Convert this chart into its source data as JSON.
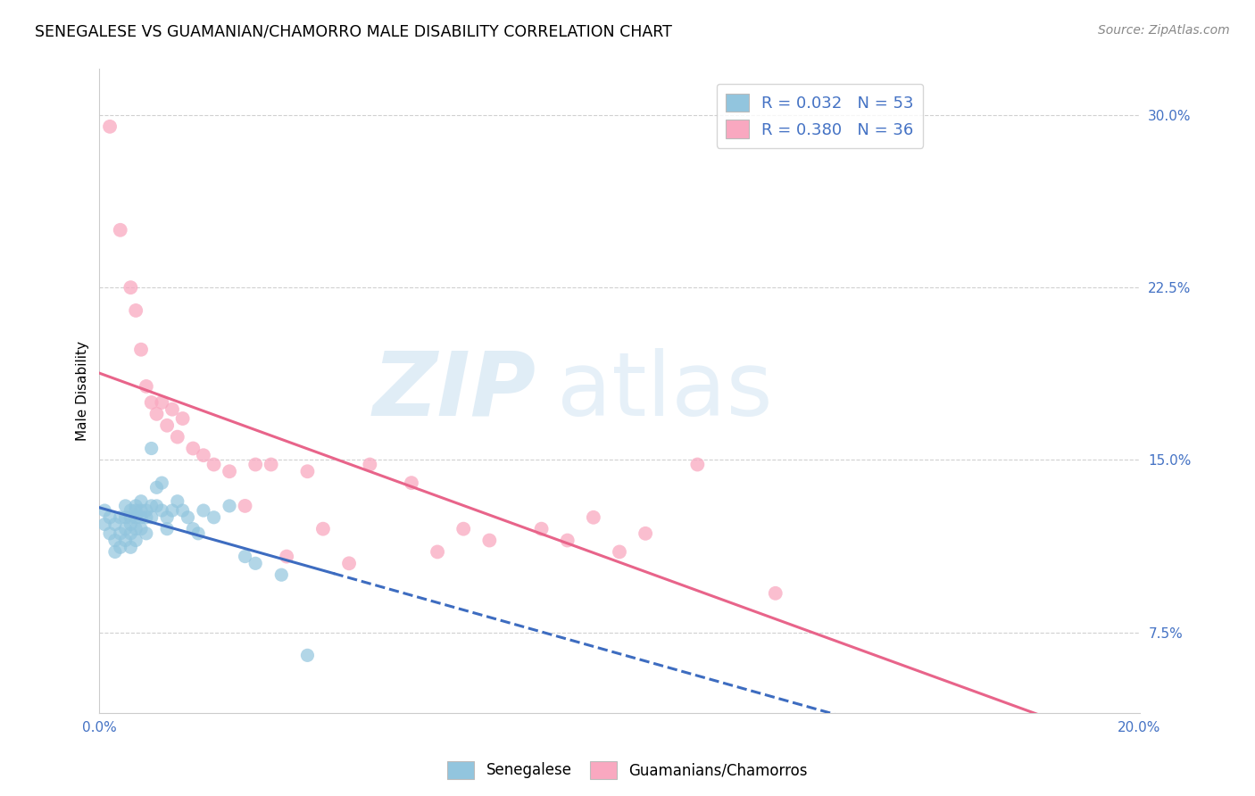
{
  "title": "SENEGALESE VS GUAMANIAN/CHAMORRO MALE DISABILITY CORRELATION CHART",
  "source": "Source: ZipAtlas.com",
  "ylabel": "Male Disability",
  "xlim": [
    0.0,
    0.2
  ],
  "ylim": [
    0.04,
    0.32
  ],
  "xtick_positions": [
    0.0,
    0.04,
    0.08,
    0.12,
    0.16,
    0.2
  ],
  "xtick_labels": [
    "0.0%",
    "",
    "",
    "",
    "",
    "20.0%"
  ],
  "yticks_right": [
    0.075,
    0.15,
    0.225,
    0.3
  ],
  "ytick_labels_right": [
    "7.5%",
    "15.0%",
    "22.5%",
    "30.0%"
  ],
  "color_blue": "#92c5de",
  "color_pink": "#f9a8c0",
  "color_line_blue": "#3d6cc0",
  "color_line_pink": "#e8648a",
  "color_text_blue": "#4472c4",
  "color_grid": "#d0d0d0",
  "watermark_zip": "ZIP",
  "watermark_atlas": "atlas",
  "label1": "Senegalese",
  "label2": "Guamanians/Chamorros",
  "senegalese_x": [
    0.001,
    0.001,
    0.002,
    0.002,
    0.003,
    0.003,
    0.003,
    0.004,
    0.004,
    0.004,
    0.005,
    0.005,
    0.005,
    0.005,
    0.006,
    0.006,
    0.006,
    0.006,
    0.006,
    0.007,
    0.007,
    0.007,
    0.007,
    0.007,
    0.008,
    0.008,
    0.008,
    0.008,
    0.009,
    0.009,
    0.009,
    0.01,
    0.01,
    0.01,
    0.011,
    0.011,
    0.012,
    0.012,
    0.013,
    0.013,
    0.014,
    0.015,
    0.016,
    0.017,
    0.018,
    0.019,
    0.02,
    0.022,
    0.025,
    0.028,
    0.03,
    0.035,
    0.04
  ],
  "senegalese_y": [
    0.128,
    0.122,
    0.125,
    0.118,
    0.122,
    0.115,
    0.11,
    0.125,
    0.118,
    0.112,
    0.13,
    0.125,
    0.12,
    0.115,
    0.128,
    0.125,
    0.122,
    0.118,
    0.112,
    0.13,
    0.128,
    0.125,
    0.12,
    0.115,
    0.132,
    0.128,
    0.125,
    0.12,
    0.128,
    0.125,
    0.118,
    0.155,
    0.13,
    0.125,
    0.138,
    0.13,
    0.14,
    0.128,
    0.125,
    0.12,
    0.128,
    0.132,
    0.128,
    0.125,
    0.12,
    0.118,
    0.128,
    0.125,
    0.13,
    0.108,
    0.105,
    0.1,
    0.065
  ],
  "guamanian_x": [
    0.002,
    0.004,
    0.006,
    0.007,
    0.008,
    0.009,
    0.01,
    0.011,
    0.012,
    0.013,
    0.014,
    0.015,
    0.016,
    0.018,
    0.02,
    0.022,
    0.025,
    0.028,
    0.03,
    0.033,
    0.036,
    0.04,
    0.043,
    0.048,
    0.052,
    0.06,
    0.065,
    0.07,
    0.075,
    0.085,
    0.09,
    0.095,
    0.1,
    0.105,
    0.115,
    0.13
  ],
  "guamanian_y": [
    0.295,
    0.25,
    0.225,
    0.215,
    0.198,
    0.182,
    0.175,
    0.17,
    0.175,
    0.165,
    0.172,
    0.16,
    0.168,
    0.155,
    0.152,
    0.148,
    0.145,
    0.13,
    0.148,
    0.148,
    0.108,
    0.145,
    0.12,
    0.105,
    0.148,
    0.14,
    0.11,
    0.12,
    0.115,
    0.12,
    0.115,
    0.125,
    0.11,
    0.118,
    0.148,
    0.092
  ]
}
